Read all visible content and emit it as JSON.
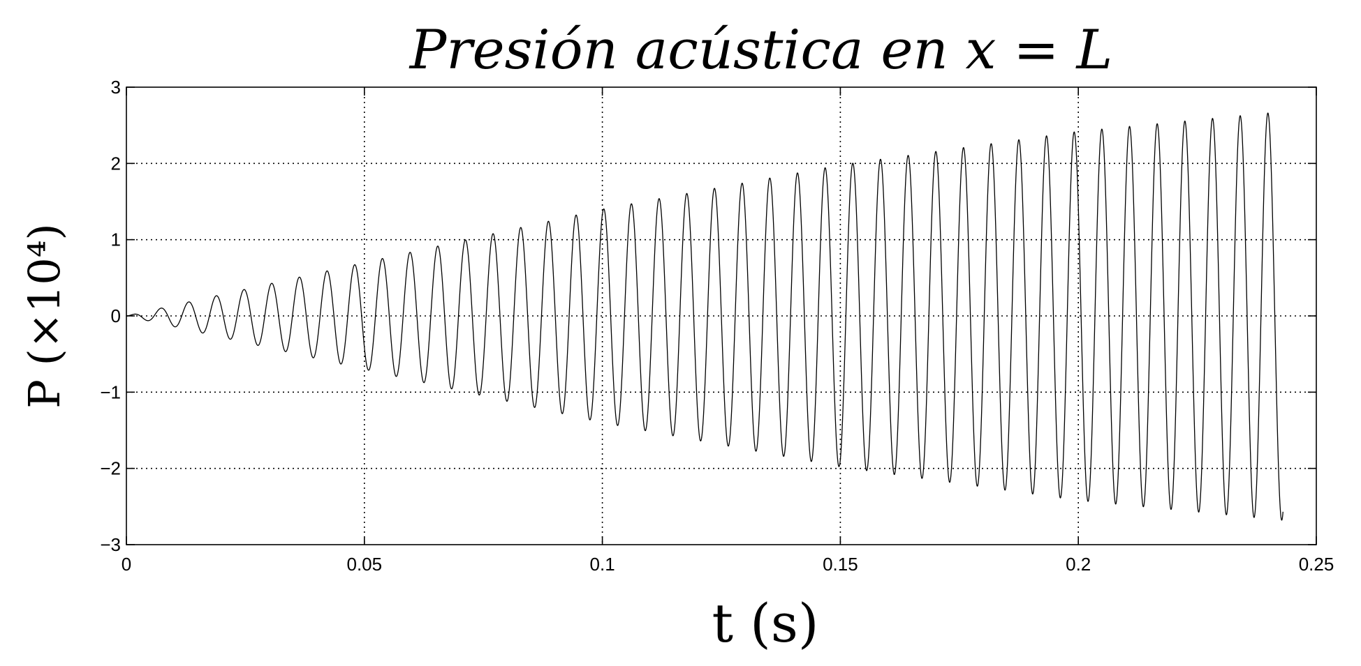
{
  "chart_data": {
    "type": "line",
    "title": "Presión acústica en x = L",
    "xlabel": "t (s)",
    "ylabel": "P (×10⁴)",
    "xlim": [
      0,
      0.25
    ],
    "ylim": [
      -3,
      3
    ],
    "xticks": [
      "0",
      "0.05",
      "0.1",
      "0.15",
      "0.2",
      "0.25"
    ],
    "yticks": [
      "3",
      "2",
      "1",
      "0",
      "−1",
      "−2",
      "−3"
    ],
    "grid": true,
    "legend": "none",
    "series": [
      {
        "color": "#000000",
        "description_of_shape": "oscillation",
        "frequency_hz": 172,
        "t_end": 0.243,
        "envelope_t": [
          0,
          0.05,
          0.1,
          0.15,
          0.2,
          0.243
        ],
        "envelope_amplitude": [
          0.0,
          0.7,
          1.4,
          1.98,
          2.42,
          2.68
        ]
      }
    ]
  }
}
